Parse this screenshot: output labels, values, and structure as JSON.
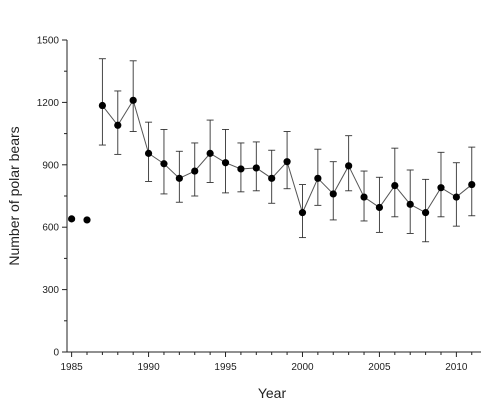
{
  "chart_data": {
    "type": "scatter",
    "title": "",
    "xlabel": "Year",
    "ylabel": "Number of polar bears",
    "xlim": [
      1984.7,
      2011.6
    ],
    "ylim": [
      0,
      1500
    ],
    "x_ticks_major": [
      1985,
      1990,
      1995,
      2000,
      2005,
      2010
    ],
    "x_tick_labels": [
      "1985",
      "1990",
      "1995",
      "2000",
      "2005",
      "2010"
    ],
    "y_ticks_major": [
      0,
      300,
      600,
      900,
      1200,
      1500
    ],
    "y_tick_labels": [
      "0",
      "300",
      "600",
      "900",
      "1200",
      "1500"
    ],
    "grid": false,
    "isolated_points": [
      {
        "x": 1985,
        "y": 640
      },
      {
        "x": 1986,
        "y": 635
      }
    ],
    "series": [
      {
        "x": [
          1987,
          1988,
          1989,
          1990,
          1991,
          1992,
          1993,
          1994,
          1995,
          1996,
          1997,
          1998,
          1999,
          2000,
          2001,
          2002,
          2003,
          2004,
          2005,
          2006,
          2007,
          2008,
          2009,
          2010,
          2011
        ],
        "y": [
          1185,
          1090,
          1210,
          955,
          905,
          835,
          870,
          955,
          910,
          880,
          885,
          835,
          915,
          670,
          835,
          760,
          895,
          745,
          695,
          800,
          710,
          670,
          790,
          745,
          805
        ],
        "err_low": [
          995,
          950,
          1060,
          820,
          760,
          720,
          750,
          815,
          765,
          770,
          775,
          715,
          785,
          550,
          705,
          635,
          775,
          630,
          575,
          650,
          570,
          530,
          650,
          605,
          655
        ],
        "err_high": [
          1410,
          1255,
          1400,
          1105,
          1070,
          965,
          1005,
          1115,
          1070,
          1005,
          1010,
          970,
          1060,
          805,
          975,
          915,
          1040,
          870,
          840,
          980,
          875,
          830,
          960,
          910,
          985
        ]
      }
    ]
  }
}
